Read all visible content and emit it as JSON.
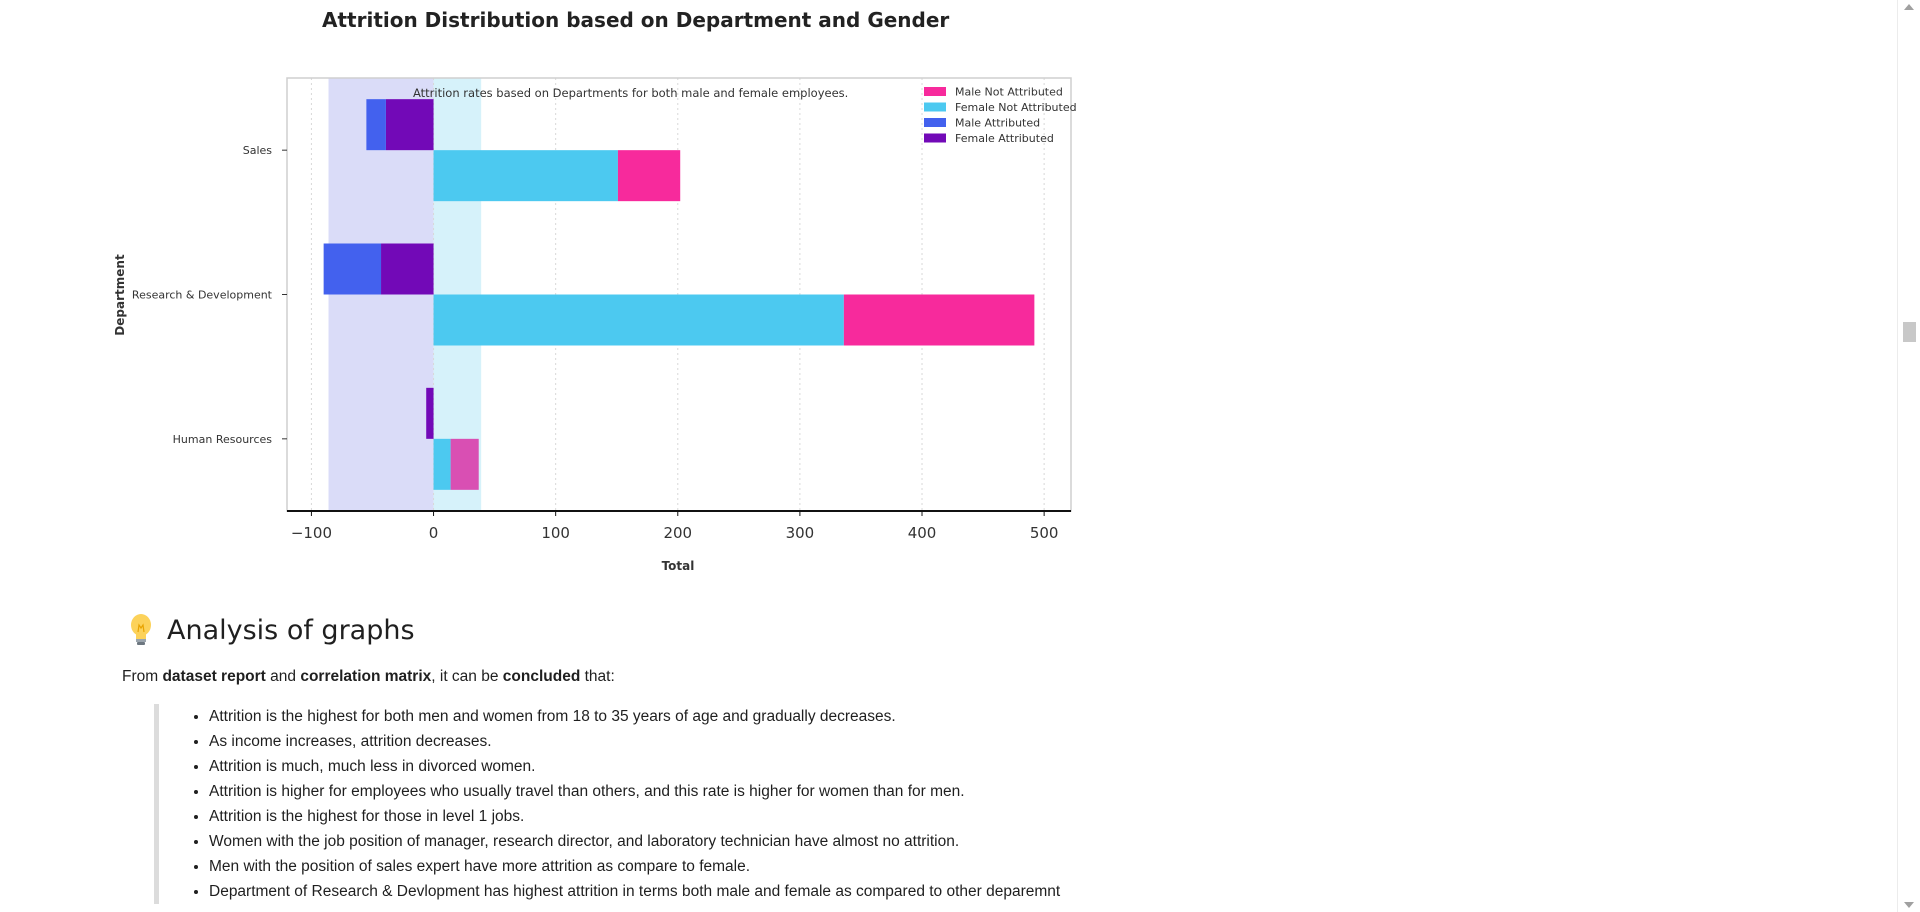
{
  "chart_data": {
    "type": "bar",
    "title": "Attrition Distribution based on Department and Gender",
    "subtitle": "Attrition rates based on Departments for both male and female employees.",
    "xlabel": "Total",
    "ylabel": "Department",
    "xlim": [
      -120,
      522
    ],
    "xticks": [
      -100,
      0,
      100,
      200,
      300,
      400,
      500
    ],
    "xtick_labels": [
      "−100",
      "0",
      "100",
      "200",
      "300",
      "400",
      "500"
    ],
    "categories": [
      "Sales",
      "Research & Development",
      "Human Resources"
    ],
    "series": [
      {
        "name": "Male Not Attributed",
        "color": "#f72a9c",
        "values": [
          51,
          156,
          23
        ]
      },
      {
        "name": "Female Not Attributed",
        "color": "#4cc9f0",
        "values": [
          151,
          336,
          14
        ]
      },
      {
        "name": "Male Attributed",
        "color": "#4361ee",
        "values": [
          -16,
          -47,
          0
        ]
      },
      {
        "name": "Female Attributed",
        "color": "#7209b7",
        "values": [
          -39,
          -43,
          -6
        ]
      }
    ],
    "shaded_bands": [
      {
        "from": -86,
        "to": 0,
        "color": "#dadcf8"
      },
      {
        "from": 0,
        "to": 39,
        "color": "#d6f2fa"
      }
    ],
    "legend_position": "top-right",
    "grid": "vertical dotted"
  },
  "analysis": {
    "icon": "lightbulb-icon",
    "heading": "Analysis of graphs",
    "intro": {
      "from": "From ",
      "dataset_report": "dataset report",
      "and": " and ",
      "correlation_matrix": "correlation matrix",
      "can_be": ", it can be ",
      "concluded": "concluded",
      "that": " that:"
    },
    "points": [
      "Attrition is the highest for both men and women from 18 to 35 years of age and gradually decreases.",
      "As income increases, attrition decreases.",
      "Attrition is much, much less in divorced women.",
      "Attrition is higher for employees who usually travel than others, and this rate is higher for women than for men.",
      "Attrition is the highest for those in level 1 jobs.",
      "Women with the job position of manager, research director, and laboratory technician have almost no attrition.",
      "Men with the position of sales expert have more attrition as compare to female.",
      "Department of Research & Devlopment has highest attrition in terms both male and female as compared to other deparemnt"
    ]
  }
}
